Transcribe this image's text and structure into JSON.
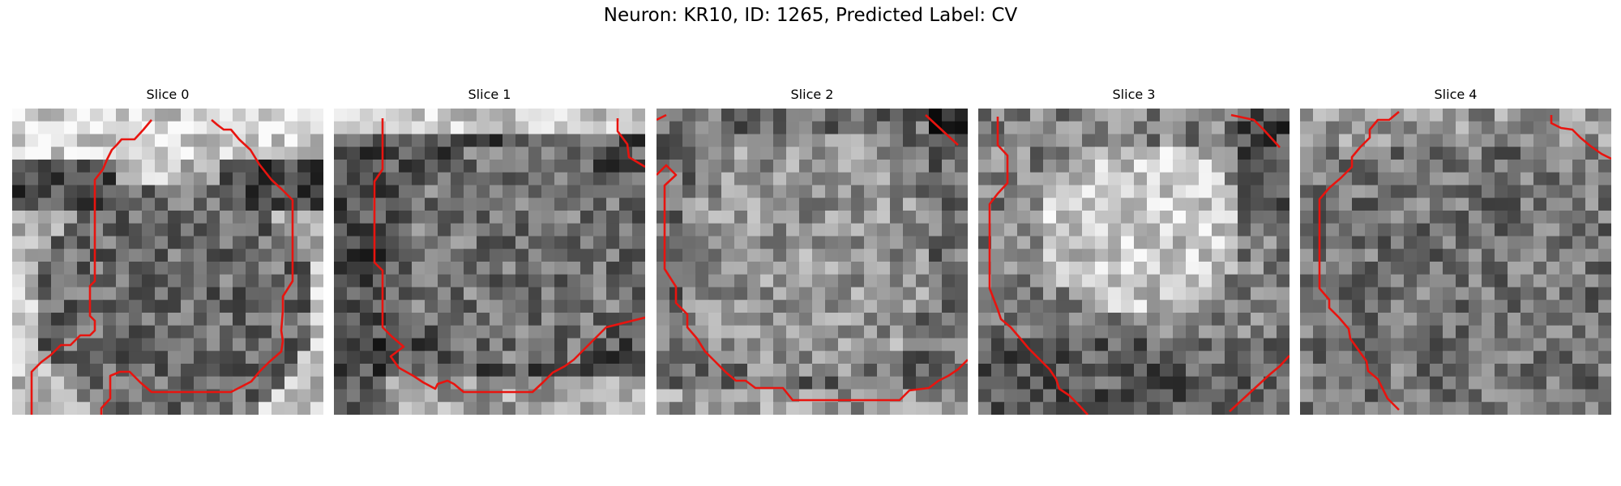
{
  "figure": {
    "title": "Neuron: KR10, ID: 1265, Predicted Label: CV"
  },
  "colors": {
    "contour": "#e8140f",
    "colormap": "gray"
  },
  "panels": [
    {
      "title": "Slice 0",
      "seed": 11
    },
    {
      "title": "Slice 1",
      "seed": 23
    },
    {
      "title": "Slice 2",
      "seed": 37
    },
    {
      "title": "Slice 3",
      "seed": 41
    },
    {
      "title": "Slice 4",
      "seed": 59
    }
  ]
}
